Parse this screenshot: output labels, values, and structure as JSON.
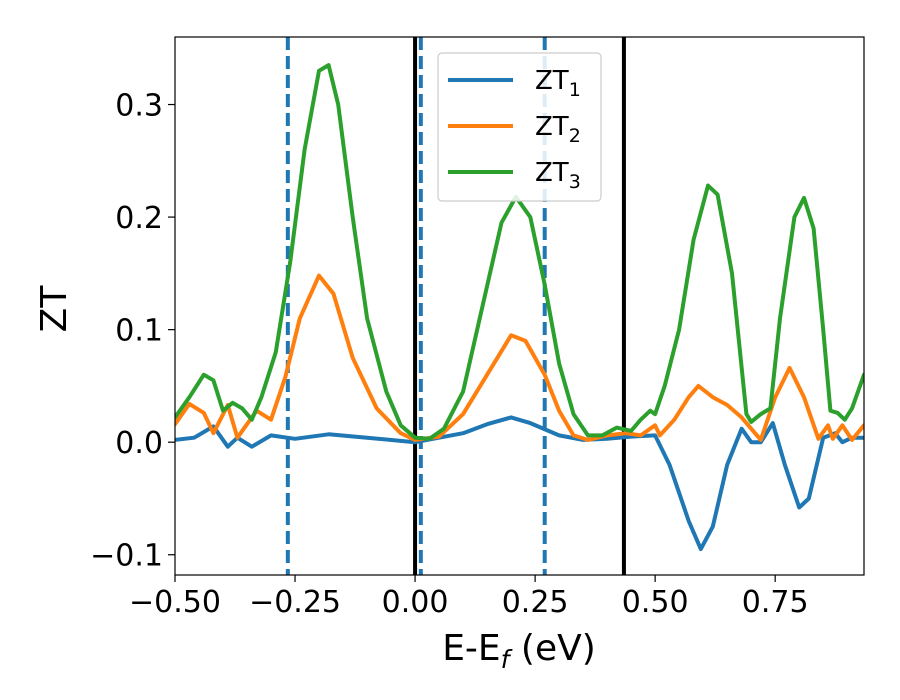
{
  "chart_data": {
    "type": "line",
    "title": "",
    "xlabel": {
      "main": "E-E",
      "sub": "f",
      "suffix": " (eV)"
    },
    "ylabel": "ZT",
    "xlim": [
      -0.5,
      0.935
    ],
    "ylim": [
      -0.118,
      0.36
    ],
    "xticks": [
      -0.5,
      -0.25,
      0.0,
      0.25,
      0.5,
      0.75
    ],
    "xtick_labels": [
      "−0.50",
      "−0.25",
      "0.00",
      "0.25",
      "0.50",
      "0.75"
    ],
    "yticks": [
      -0.1,
      0.0,
      0.1,
      0.2,
      0.3
    ],
    "ytick_labels": [
      "−0.1",
      "0.0",
      "0.1",
      "0.2",
      "0.3"
    ],
    "grid": false,
    "legend_position": "top-center",
    "vlines": [
      {
        "x": -0.265,
        "style": "dashed",
        "color": "#1f77b4"
      },
      {
        "x": 0.0,
        "style": "solid",
        "color": "#000000"
      },
      {
        "x": 0.012,
        "style": "dashed",
        "color": "#1f77b4"
      },
      {
        "x": 0.27,
        "style": "dashed",
        "color": "#1f77b4"
      },
      {
        "x": 0.435,
        "style": "solid",
        "color": "#000000"
      }
    ],
    "series": [
      {
        "name": "ZT",
        "sub": "1",
        "color": "#1f77b4",
        "points": [
          [
            -0.5,
            0.002
          ],
          [
            -0.46,
            0.004
          ],
          [
            -0.42,
            0.014
          ],
          [
            -0.39,
            -0.004
          ],
          [
            -0.37,
            0.004
          ],
          [
            -0.34,
            -0.004
          ],
          [
            -0.3,
            0.006
          ],
          [
            -0.25,
            0.003
          ],
          [
            -0.18,
            0.007
          ],
          [
            -0.1,
            0.004
          ],
          [
            0.0,
            0.0
          ],
          [
            0.05,
            0.004
          ],
          [
            0.1,
            0.008
          ],
          [
            0.15,
            0.016
          ],
          [
            0.2,
            0.022
          ],
          [
            0.24,
            0.017
          ],
          [
            0.3,
            0.006
          ],
          [
            0.35,
            0.002
          ],
          [
            0.4,
            0.003
          ],
          [
            0.45,
            0.005
          ],
          [
            0.5,
            0.006
          ],
          [
            0.53,
            -0.02
          ],
          [
            0.57,
            -0.07
          ],
          [
            0.595,
            -0.095
          ],
          [
            0.62,
            -0.075
          ],
          [
            0.65,
            -0.02
          ],
          [
            0.68,
            0.012
          ],
          [
            0.7,
            0.0
          ],
          [
            0.72,
            0.0
          ],
          [
            0.745,
            0.017
          ],
          [
            0.77,
            -0.02
          ],
          [
            0.8,
            -0.058
          ],
          [
            0.82,
            -0.05
          ],
          [
            0.85,
            0.004
          ],
          [
            0.875,
            0.008
          ],
          [
            0.89,
            0.0
          ],
          [
            0.91,
            0.004
          ],
          [
            0.935,
            0.004
          ]
        ]
      },
      {
        "name": "ZT",
        "sub": "2",
        "color": "#ff7f0e",
        "points": [
          [
            -0.5,
            0.016
          ],
          [
            -0.47,
            0.034
          ],
          [
            -0.44,
            0.026
          ],
          [
            -0.42,
            0.008
          ],
          [
            -0.39,
            0.033
          ],
          [
            -0.37,
            0.004
          ],
          [
            -0.33,
            0.028
          ],
          [
            -0.3,
            0.02
          ],
          [
            -0.27,
            0.058
          ],
          [
            -0.24,
            0.11
          ],
          [
            -0.2,
            0.148
          ],
          [
            -0.17,
            0.132
          ],
          [
            -0.13,
            0.075
          ],
          [
            -0.08,
            0.03
          ],
          [
            -0.03,
            0.008
          ],
          [
            0.0,
            0.002
          ],
          [
            0.05,
            0.005
          ],
          [
            0.1,
            0.025
          ],
          [
            0.15,
            0.06
          ],
          [
            0.2,
            0.095
          ],
          [
            0.23,
            0.09
          ],
          [
            0.27,
            0.06
          ],
          [
            0.3,
            0.028
          ],
          [
            0.33,
            0.006
          ],
          [
            0.36,
            0.002
          ],
          [
            0.4,
            0.006
          ],
          [
            0.44,
            0.008
          ],
          [
            0.47,
            0.006
          ],
          [
            0.5,
            0.015
          ],
          [
            0.51,
            0.006
          ],
          [
            0.54,
            0.02
          ],
          [
            0.57,
            0.04
          ],
          [
            0.59,
            0.05
          ],
          [
            0.62,
            0.04
          ],
          [
            0.65,
            0.033
          ],
          [
            0.68,
            0.022
          ],
          [
            0.72,
            0.002
          ],
          [
            0.75,
            0.04
          ],
          [
            0.78,
            0.066
          ],
          [
            0.81,
            0.04
          ],
          [
            0.84,
            0.003
          ],
          [
            0.86,
            0.015
          ],
          [
            0.87,
            0.003
          ],
          [
            0.89,
            0.015
          ],
          [
            0.91,
            0.002
          ],
          [
            0.935,
            0.015
          ]
        ]
      },
      {
        "name": "ZT",
        "sub": "3",
        "color": "#2ca02c",
        "points": [
          [
            -0.5,
            0.022
          ],
          [
            -0.47,
            0.04
          ],
          [
            -0.44,
            0.06
          ],
          [
            -0.42,
            0.055
          ],
          [
            -0.4,
            0.028
          ],
          [
            -0.38,
            0.035
          ],
          [
            -0.36,
            0.03
          ],
          [
            -0.34,
            0.02
          ],
          [
            -0.32,
            0.04
          ],
          [
            -0.29,
            0.08
          ],
          [
            -0.26,
            0.16
          ],
          [
            -0.23,
            0.26
          ],
          [
            -0.2,
            0.33
          ],
          [
            -0.18,
            0.335
          ],
          [
            -0.16,
            0.3
          ],
          [
            -0.13,
            0.2
          ],
          [
            -0.1,
            0.11
          ],
          [
            -0.06,
            0.045
          ],
          [
            -0.03,
            0.015
          ],
          [
            0.0,
            0.004
          ],
          [
            0.03,
            0.003
          ],
          [
            0.06,
            0.012
          ],
          [
            0.1,
            0.045
          ],
          [
            0.14,
            0.12
          ],
          [
            0.18,
            0.195
          ],
          [
            0.21,
            0.218
          ],
          [
            0.24,
            0.2
          ],
          [
            0.27,
            0.14
          ],
          [
            0.3,
            0.07
          ],
          [
            0.33,
            0.025
          ],
          [
            0.36,
            0.006
          ],
          [
            0.39,
            0.006
          ],
          [
            0.42,
            0.013
          ],
          [
            0.45,
            0.01
          ],
          [
            0.47,
            0.02
          ],
          [
            0.49,
            0.028
          ],
          [
            0.5,
            0.025
          ],
          [
            0.52,
            0.05
          ],
          [
            0.55,
            0.1
          ],
          [
            0.58,
            0.18
          ],
          [
            0.61,
            0.228
          ],
          [
            0.63,
            0.22
          ],
          [
            0.66,
            0.15
          ],
          [
            0.69,
            0.025
          ],
          [
            0.7,
            0.018
          ],
          [
            0.72,
            0.025
          ],
          [
            0.74,
            0.03
          ],
          [
            0.76,
            0.11
          ],
          [
            0.79,
            0.2
          ],
          [
            0.81,
            0.217
          ],
          [
            0.83,
            0.19
          ],
          [
            0.85,
            0.1
          ],
          [
            0.865,
            0.028
          ],
          [
            0.88,
            0.026
          ],
          [
            0.895,
            0.02
          ],
          [
            0.91,
            0.03
          ],
          [
            0.935,
            0.06
          ]
        ]
      }
    ]
  }
}
